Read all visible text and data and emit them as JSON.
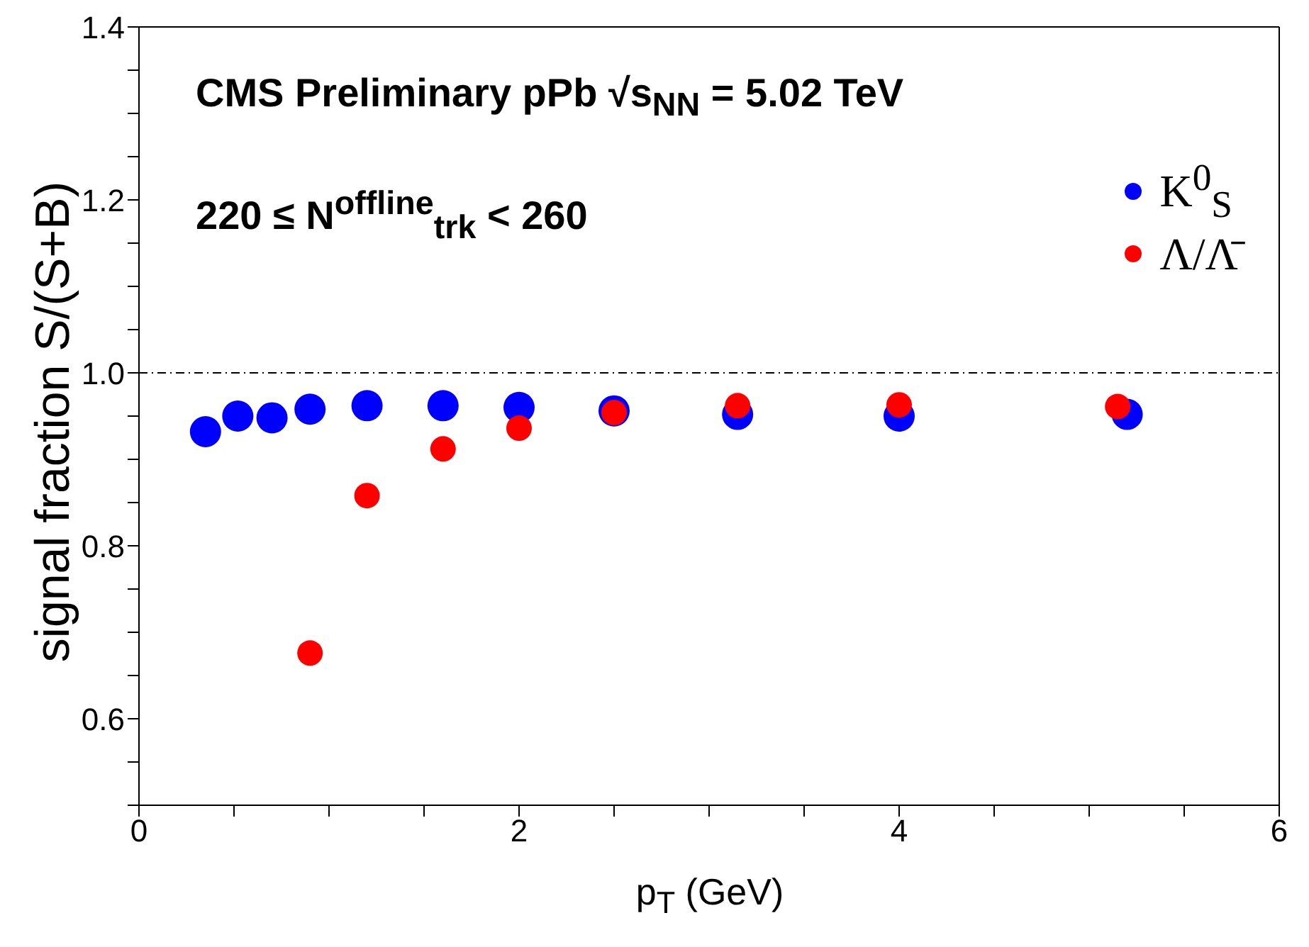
{
  "chart_data": {
    "type": "scatter",
    "xlabel": "p$_{T}$ (GeV)",
    "ylabel": "signal fraction S/(S+B)",
    "annotations": [
      "CMS Preliminary pPb √s$_{NN}$ = 5.02 TeV",
      "220 ≤ N$^{offline}$$_{trk}$ < 260"
    ],
    "series": [
      {
        "name": "K$^{0}$$_{S}$",
        "color": "#0000ff",
        "x": [
          0.35,
          0.52,
          0.7,
          0.9,
          1.2,
          1.6,
          2.0,
          2.5,
          3.15,
          4.0,
          5.2
        ],
        "values": [
          0.932,
          0.95,
          0.948,
          0.958,
          0.962,
          0.962,
          0.96,
          0.956,
          0.952,
          0.95,
          0.952
        ]
      },
      {
        "name": "Λ/Λ̄",
        "color": "#ff0000",
        "x": [
          0.9,
          1.2,
          1.6,
          2.0,
          2.5,
          3.15,
          4.0,
          5.15
        ],
        "values": [
          0.676,
          0.858,
          0.912,
          0.936,
          0.954,
          0.962,
          0.963,
          0.961
        ]
      }
    ],
    "xlim": [
      0,
      6
    ],
    "xticks": [
      0,
      {
        "value": 0.5,
        "label": null
      },
      {
        "value": 1,
        "label": null
      },
      {
        "value": 1.5,
        "label": null
      },
      2,
      {
        "value": 2.5,
        "label": null
      },
      {
        "value": 3,
        "label": null
      },
      {
        "value": 3.5,
        "label": null
      },
      4,
      {
        "value": 4.5,
        "label": null
      },
      {
        "value": 5,
        "label": null
      },
      {
        "value": 5.5,
        "label": null
      },
      6
    ],
    "ylim": [
      0.5,
      1.4
    ],
    "yticks": [
      {
        "value": 0.5,
        "label": null
      },
      {
        "value": 0.55,
        "label": null
      },
      0.6,
      {
        "value": 0.65,
        "label": null
      },
      {
        "value": 0.7,
        "label": null
      },
      {
        "value": 0.75,
        "label": null
      },
      0.8,
      {
        "value": 0.85,
        "label": null
      },
      {
        "value": 0.9,
        "label": null
      },
      {
        "value": 0.95,
        "label": null
      },
      {
        "value": 1.0,
        "label": "1.0"
      },
      {
        "value": 1.05,
        "label": null
      },
      {
        "value": 1.1,
        "label": null
      },
      {
        "value": 1.15,
        "label": null
      },
      1.2,
      {
        "value": 1.25,
        "label": null
      },
      {
        "value": 1.3,
        "label": null
      },
      {
        "value": 1.35,
        "label": null
      },
      1.4
    ],
    "ref_lines": [
      {
        "axis": "y",
        "value": 1.0,
        "line_style": "dashdot",
        "color": "#000000"
      }
    ],
    "legend": "top right",
    "marker": "circle"
  }
}
